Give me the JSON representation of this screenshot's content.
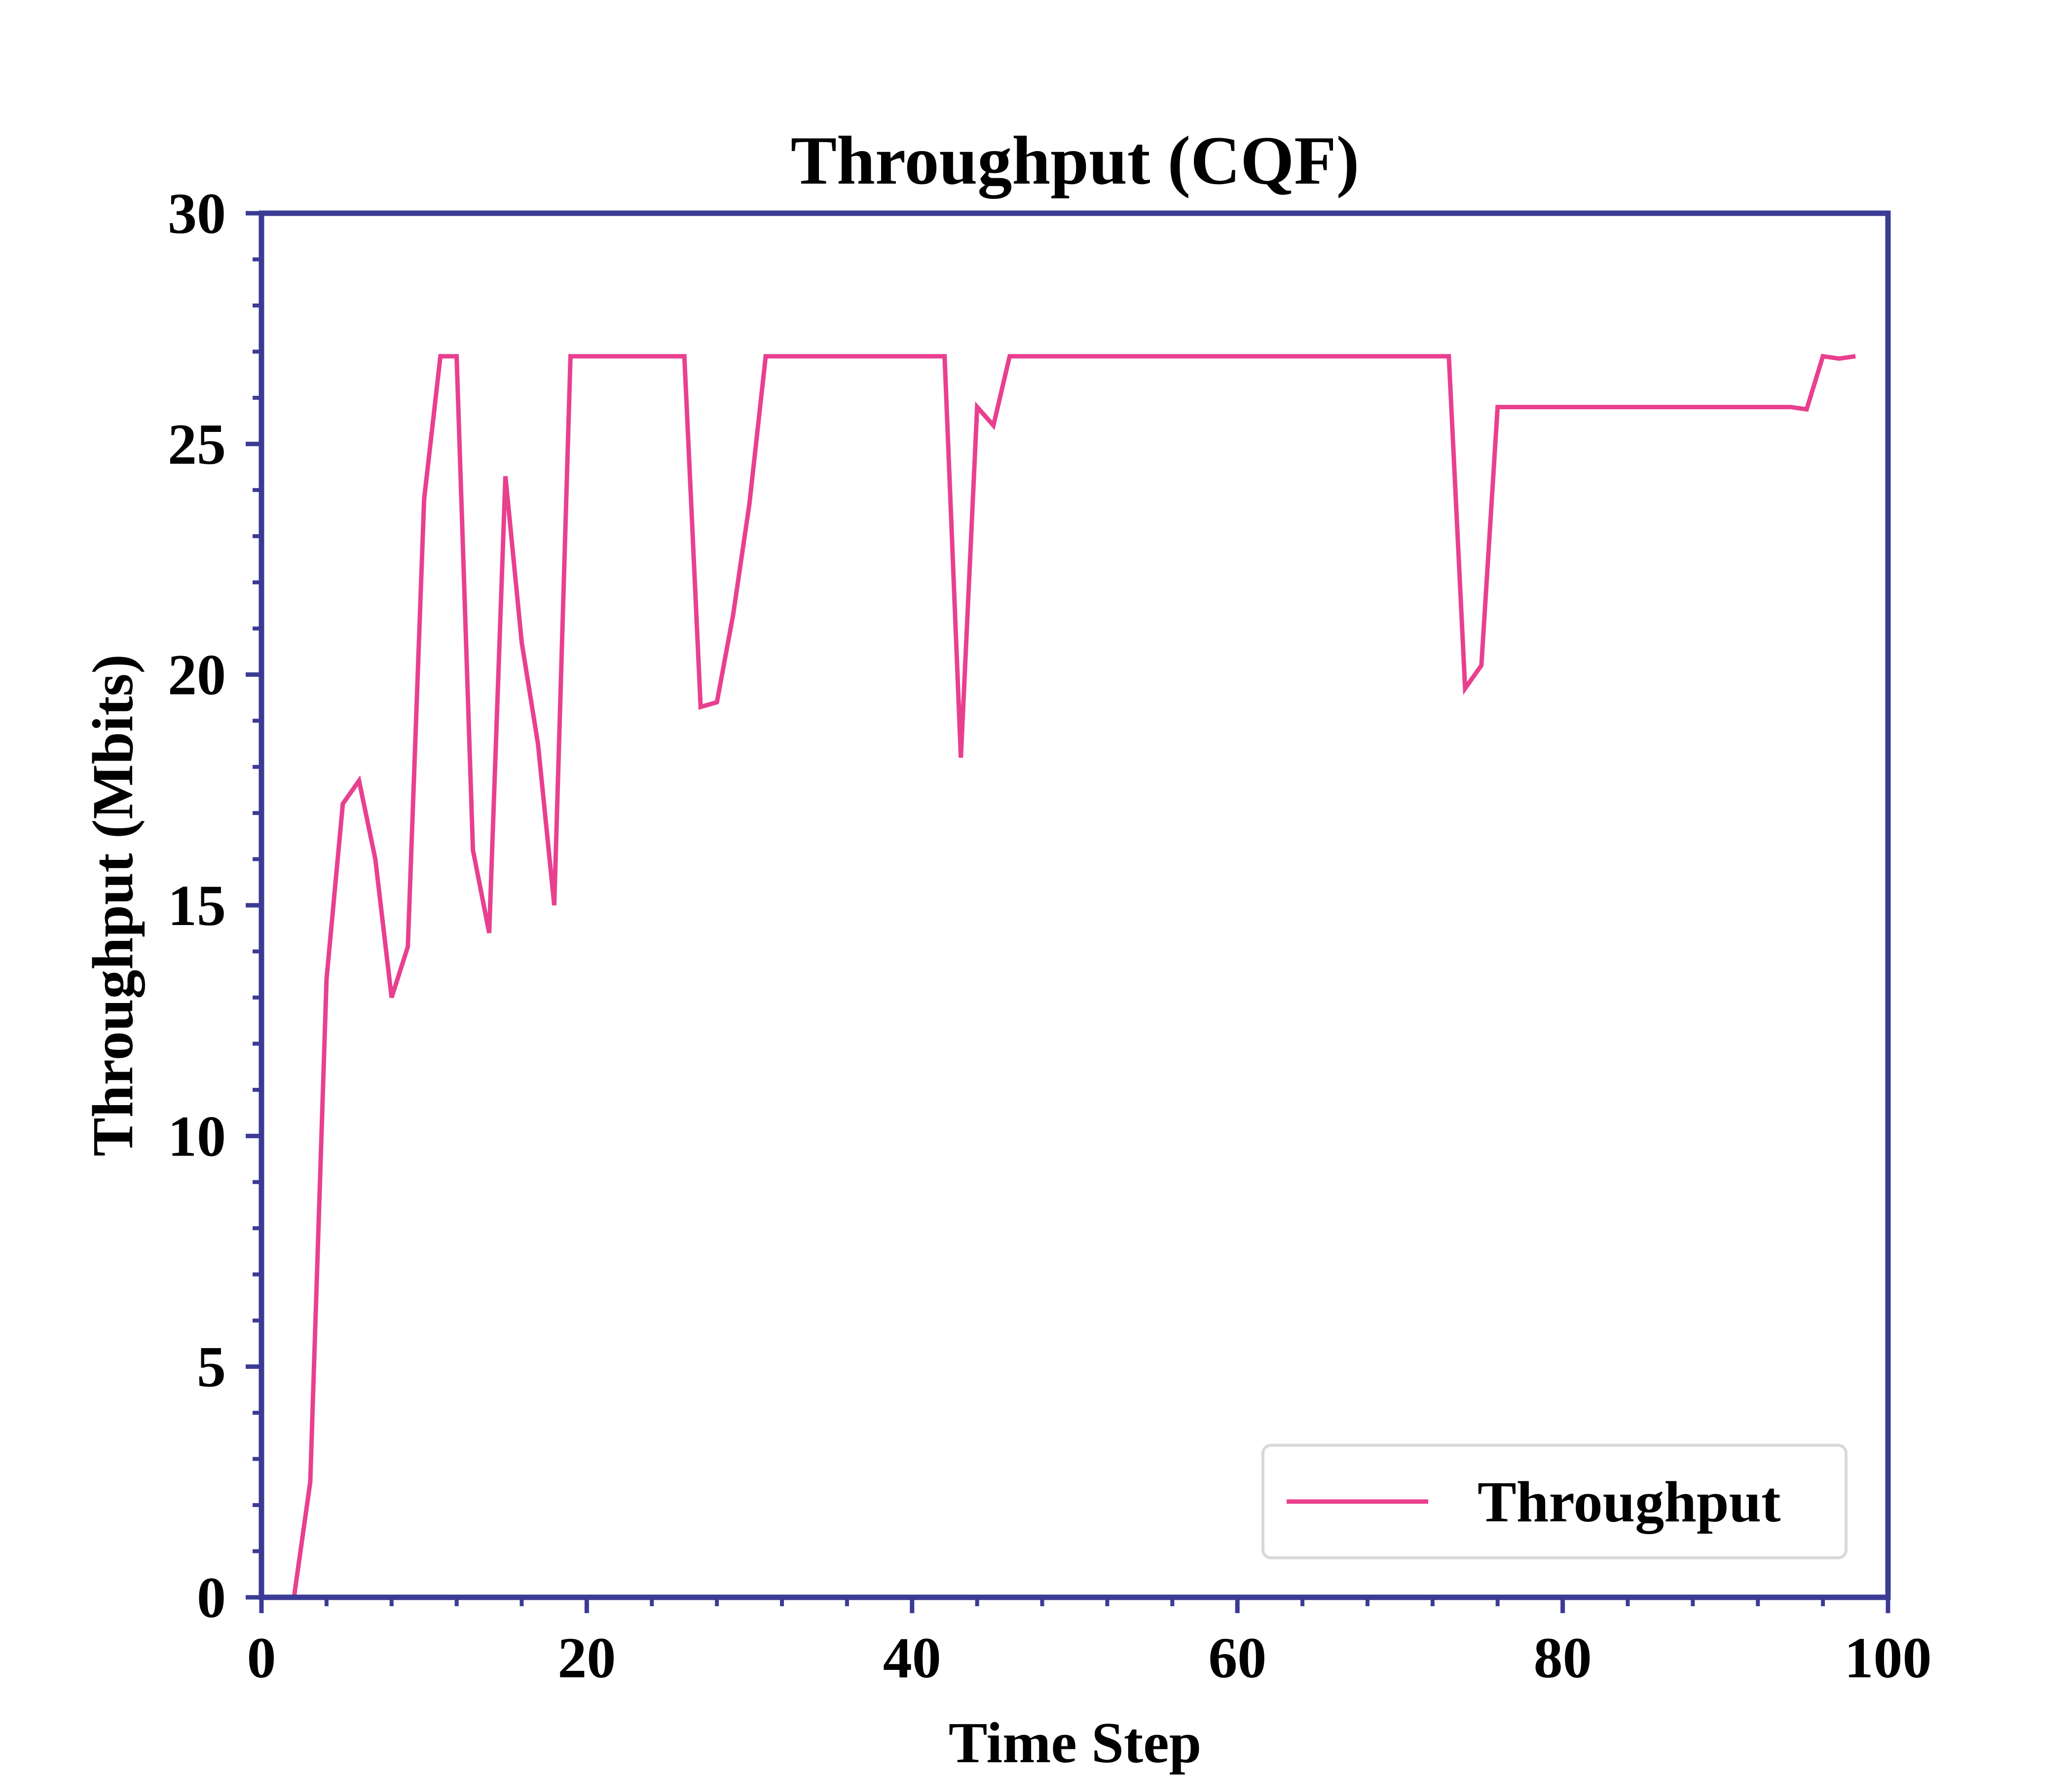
{
  "chart_data": {
    "type": "line",
    "title": "Throughput (CQF)",
    "xlabel": "Time Step",
    "ylabel": "Throughput (Mbits)",
    "xlim": [
      0,
      100
    ],
    "ylim": [
      0,
      30
    ],
    "x_ticks": [
      0,
      20,
      40,
      60,
      80,
      100
    ],
    "y_ticks": [
      0,
      5,
      10,
      15,
      20,
      25,
      30
    ],
    "grid": false,
    "legend_position": "lower-right",
    "colors": {
      "axes": "#3b3b96",
      "series": "#e8408f",
      "legend_border": "#d9d9d9"
    },
    "series": [
      {
        "name": "Throughput",
        "x": [
          2,
          3,
          4,
          5,
          6,
          7,
          8,
          9,
          10,
          11,
          12,
          13,
          14,
          15,
          16,
          17,
          18,
          19,
          20,
          21,
          22,
          23,
          24,
          25,
          26,
          27,
          28,
          29,
          30,
          31,
          32,
          33,
          34,
          35,
          36,
          37,
          38,
          39,
          40,
          41,
          42,
          43,
          44,
          45,
          46,
          47,
          48,
          49,
          50,
          51,
          52,
          53,
          54,
          55,
          56,
          57,
          58,
          59,
          60,
          61,
          62,
          63,
          64,
          65,
          66,
          67,
          68,
          69,
          70,
          71,
          72,
          73,
          74,
          75,
          76,
          77,
          78,
          79,
          80,
          81,
          82,
          83,
          84,
          85,
          86,
          87,
          88,
          89,
          90,
          91,
          92,
          93,
          94,
          95,
          96,
          97,
          98
        ],
        "y": [
          0.0,
          2.5,
          13.4,
          17.2,
          17.7,
          16.0,
          13.0,
          14.1,
          23.8,
          26.9,
          26.9,
          16.2,
          14.4,
          24.3,
          20.7,
          18.5,
          15.0,
          26.9,
          26.9,
          26.9,
          26.9,
          26.9,
          26.9,
          26.9,
          26.9,
          19.3,
          19.4,
          21.3,
          23.7,
          26.9,
          26.9,
          26.9,
          26.9,
          26.9,
          26.9,
          26.9,
          26.9,
          26.9,
          26.9,
          26.9,
          26.9,
          18.2,
          25.8,
          25.4,
          26.9,
          26.9,
          26.9,
          26.9,
          26.9,
          26.9,
          26.9,
          26.9,
          26.9,
          26.9,
          26.9,
          26.9,
          26.9,
          26.9,
          26.9,
          26.9,
          26.9,
          26.9,
          26.9,
          26.9,
          26.9,
          26.9,
          26.9,
          26.9,
          26.9,
          26.9,
          26.9,
          26.9,
          19.7,
          20.2,
          25.8,
          25.8,
          25.8,
          25.8,
          25.8,
          25.8,
          25.8,
          25.8,
          25.8,
          25.8,
          25.8,
          25.8,
          25.8,
          25.8,
          25.8,
          25.8,
          25.8,
          25.8,
          25.8,
          25.75,
          26.9,
          26.85,
          26.9
        ]
      }
    ]
  }
}
